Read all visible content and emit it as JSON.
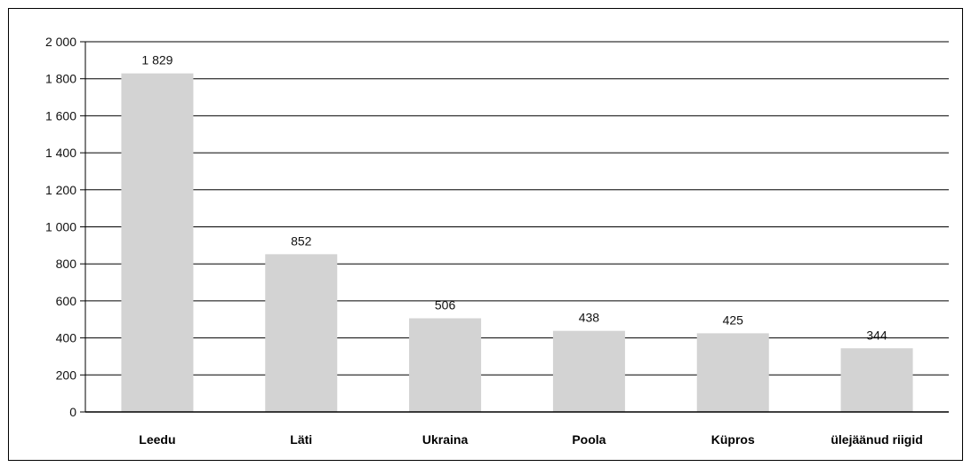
{
  "chart_data": {
    "type": "bar",
    "title": "",
    "xlabel": "",
    "ylabel": "",
    "categories": [
      "Leedu",
      "Läti",
      "Ukraina",
      "Poola",
      "Küpros",
      "ülejäänud riigid"
    ],
    "values": [
      1829,
      852,
      506,
      438,
      425,
      344
    ],
    "data_labels": [
      "1 829",
      "852",
      "506",
      "438",
      "425",
      "344"
    ],
    "ylim": [
      0,
      2000
    ],
    "yticks": [
      0,
      200,
      400,
      600,
      800,
      1000,
      1200,
      1400,
      1600,
      1800,
      2000
    ],
    "ytick_labels": [
      "0",
      "200",
      "400",
      "600",
      "800",
      "1 000",
      "1 200",
      "1 400",
      "1 600",
      "1 800",
      "2 000"
    ],
    "grid": true,
    "legend": "none",
    "colors": {
      "bar": "#d3d3d3",
      "grid": "#000000",
      "axis": "#000000"
    }
  }
}
